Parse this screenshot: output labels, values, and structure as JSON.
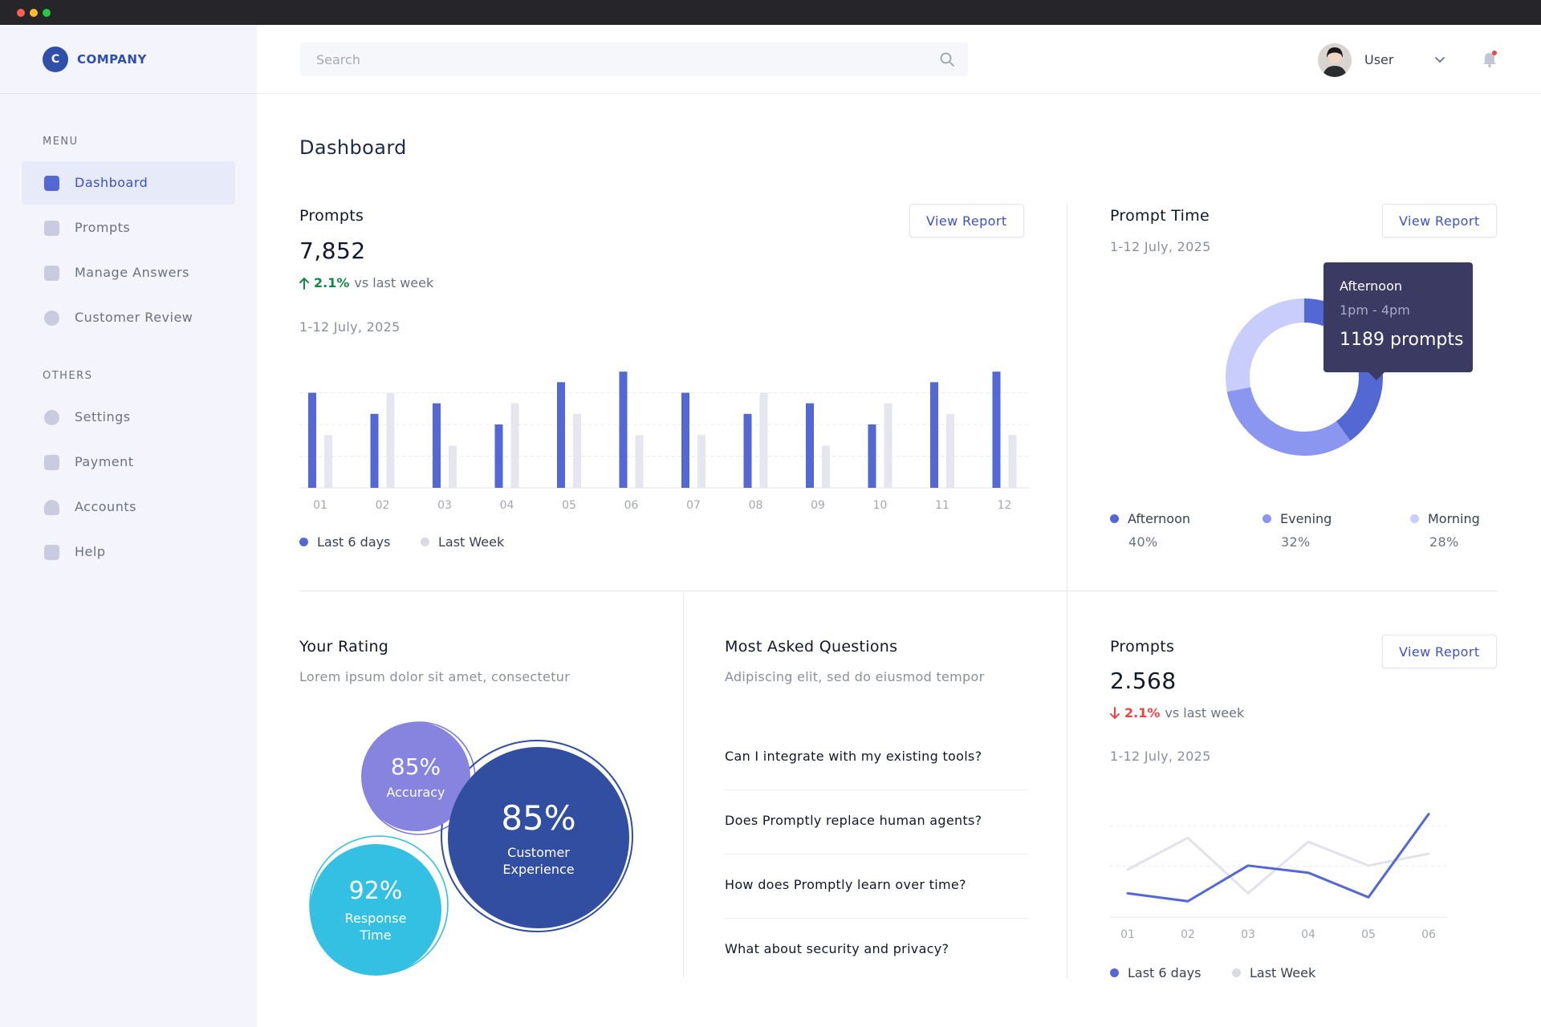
{
  "colors": {
    "accent": "#5468d4",
    "brand": "#2f4fa8",
    "up": "#16874a",
    "down": "#ef4444"
  },
  "brand": {
    "logo_letter": "C",
    "name": "COMPANY"
  },
  "sidebar": {
    "menu_label": "MENU",
    "others_label": "OTHERS",
    "menu_items": [
      {
        "label": "Dashboard",
        "icon": "chart-icon",
        "active": true
      },
      {
        "label": "Prompts",
        "icon": "cart-icon"
      },
      {
        "label": "Manage Answers",
        "icon": "document-icon"
      },
      {
        "label": "Customer Review",
        "icon": "chat-icon"
      }
    ],
    "other_items": [
      {
        "label": "Settings",
        "icon": "gear-icon"
      },
      {
        "label": "Payment",
        "icon": "wallet-icon"
      },
      {
        "label": "Accounts",
        "icon": "user-icon"
      },
      {
        "label": "Help",
        "icon": "info-icon"
      }
    ]
  },
  "topbar": {
    "search_placeholder": "Search",
    "user_name": "User"
  },
  "page_title": "Dashboard",
  "prompts_card": {
    "title": "Prompts",
    "button": "View Report",
    "value": "7,852",
    "trend_pct": "2.1%",
    "trend_text": "vs last week",
    "date_range": "1-12 July, 2025",
    "legend_current": "Last 6 days",
    "legend_previous": "Last Week"
  },
  "prompt_time_card": {
    "title": "Prompt Time",
    "button": "View Report",
    "date_range": "1-12 July, 2025",
    "tooltip": {
      "title": "Afternoon",
      "time": "1pm - 4pm",
      "value": "1189 prompts"
    },
    "segments": [
      {
        "label": "Afternoon",
        "value": "40%",
        "color": "#5468d4"
      },
      {
        "label": "Evening",
        "value": "32%",
        "color": "#8b96f0"
      },
      {
        "label": "Morning",
        "value": "28%",
        "color": "#c9cdfb"
      }
    ]
  },
  "rating_card": {
    "title": "Your Rating",
    "subtitle": "Lorem ipsum dolor sit amet, consectetur",
    "bubbles": [
      {
        "value": "85%",
        "label": "Accuracy",
        "color": "#8784e0"
      },
      {
        "value": "85%",
        "label": "Customer Experience",
        "color": "#314ea1"
      },
      {
        "value": "92%",
        "label": "Response Time",
        "color": "#34c0e3"
      }
    ]
  },
  "faq_card": {
    "title": "Most Asked Questions",
    "subtitle": "Adipiscing elit, sed do eiusmod tempor",
    "questions": [
      "Can I integrate with my existing tools?",
      "Does Promptly replace human agents?",
      "How does Promptly learn over time?",
      "What about security and privacy?"
    ]
  },
  "prompts_card_2": {
    "title": "Prompts",
    "button": "View Report",
    "value": "2.568",
    "trend_pct": "2.1%",
    "trend_text": "vs last week",
    "date_range": "1-12 July, 2025",
    "legend_current": "Last 6 days",
    "legend_previous": "Last Week"
  },
  "chart_data": [
    {
      "type": "bar",
      "categories": [
        "01",
        "02",
        "03",
        "04",
        "05",
        "06",
        "07",
        "08",
        "09",
        "10",
        "11",
        "12"
      ],
      "series": [
        {
          "name": "Last 6 days",
          "color": "#5468d4",
          "values": [
            9,
            7,
            8,
            6,
            10,
            11,
            9,
            7,
            8,
            6,
            10,
            11
          ]
        },
        {
          "name": "Last Week",
          "color": "#e6e7ee",
          "values": [
            5,
            9,
            4,
            8,
            7,
            5,
            5,
            9,
            4,
            8,
            7,
            5
          ]
        }
      ],
      "ylim": [
        0,
        12
      ],
      "grid": true,
      "legend": "bottom-left"
    },
    {
      "type": "pie",
      "categories": [
        "Afternoon",
        "Evening",
        "Morning"
      ],
      "values": [
        40,
        32,
        28
      ]
    },
    {
      "type": "line",
      "categories": [
        "01",
        "02",
        "03",
        "04",
        "05",
        "06"
      ],
      "series": [
        {
          "name": "Last 6 days",
          "color": "#5468d4",
          "values": [
            3.0,
            2.0,
            6.5,
            5.6,
            2.5,
            13.0
          ]
        },
        {
          "name": "Last Week",
          "color": "#e2e3ea",
          "values": [
            6.0,
            10.0,
            3.0,
            9.5,
            6.5,
            8.0
          ]
        }
      ],
      "ylim": [
        0,
        16
      ],
      "grid": true,
      "legend": "bottom-left"
    }
  ]
}
